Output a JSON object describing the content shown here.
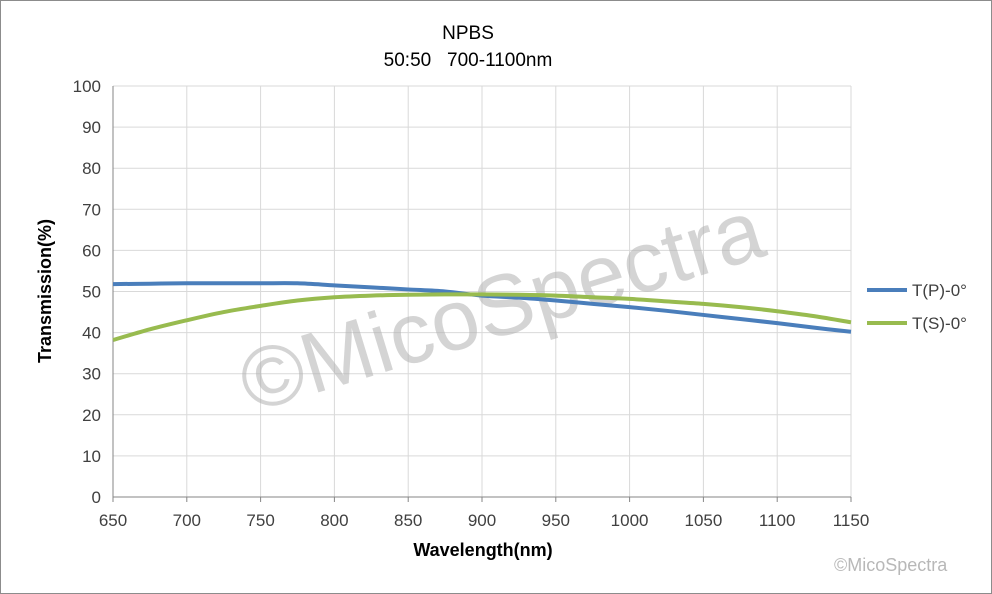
{
  "chart_data": {
    "type": "line",
    "title": "NPBS",
    "subtitle": "50:50   700-1100nm",
    "xlabel": "Wavelength(nm)",
    "ylabel": "Transmission(%)",
    "xlim": [
      650,
      1150
    ],
    "ylim": [
      0,
      100
    ],
    "xticks": [
      650,
      700,
      750,
      800,
      850,
      900,
      950,
      1000,
      1050,
      1100,
      1150
    ],
    "yticks": [
      0,
      10,
      20,
      30,
      40,
      50,
      60,
      70,
      80,
      90,
      100
    ],
    "grid": true,
    "legend_position": "right",
    "series": [
      {
        "name": "T(P)-0°",
        "color": "#4a7ebb",
        "x": [
          650,
          675,
          700,
          725,
          750,
          775,
          800,
          825,
          850,
          875,
          900,
          925,
          950,
          975,
          1000,
          1025,
          1050,
          1075,
          1100,
          1125,
          1150
        ],
        "y": [
          51.8,
          51.9,
          52.0,
          52.0,
          52.0,
          52.0,
          51.5,
          51.0,
          50.5,
          50.0,
          49.0,
          48.5,
          47.8,
          47.0,
          46.2,
          45.3,
          44.3,
          43.3,
          42.3,
          41.2,
          40.2
        ]
      },
      {
        "name": "T(S)-0°",
        "color": "#98bb4f",
        "x": [
          650,
          675,
          700,
          725,
          750,
          775,
          800,
          825,
          850,
          875,
          900,
          925,
          950,
          975,
          1000,
          1025,
          1050,
          1075,
          1100,
          1125,
          1150
        ],
        "y": [
          38.2,
          40.8,
          43.0,
          45.0,
          46.5,
          47.8,
          48.6,
          49.0,
          49.2,
          49.3,
          49.3,
          49.2,
          49.0,
          48.6,
          48.2,
          47.6,
          47.0,
          46.2,
          45.2,
          44.0,
          42.5
        ]
      }
    ]
  },
  "watermark": {
    "large": "©MicoSpectra",
    "small": "©MicoSpectra"
  },
  "colors": {
    "grid": "#d9d9d9",
    "axis": "#868686",
    "tp": "#4a7ebb",
    "ts": "#98bb4f"
  }
}
